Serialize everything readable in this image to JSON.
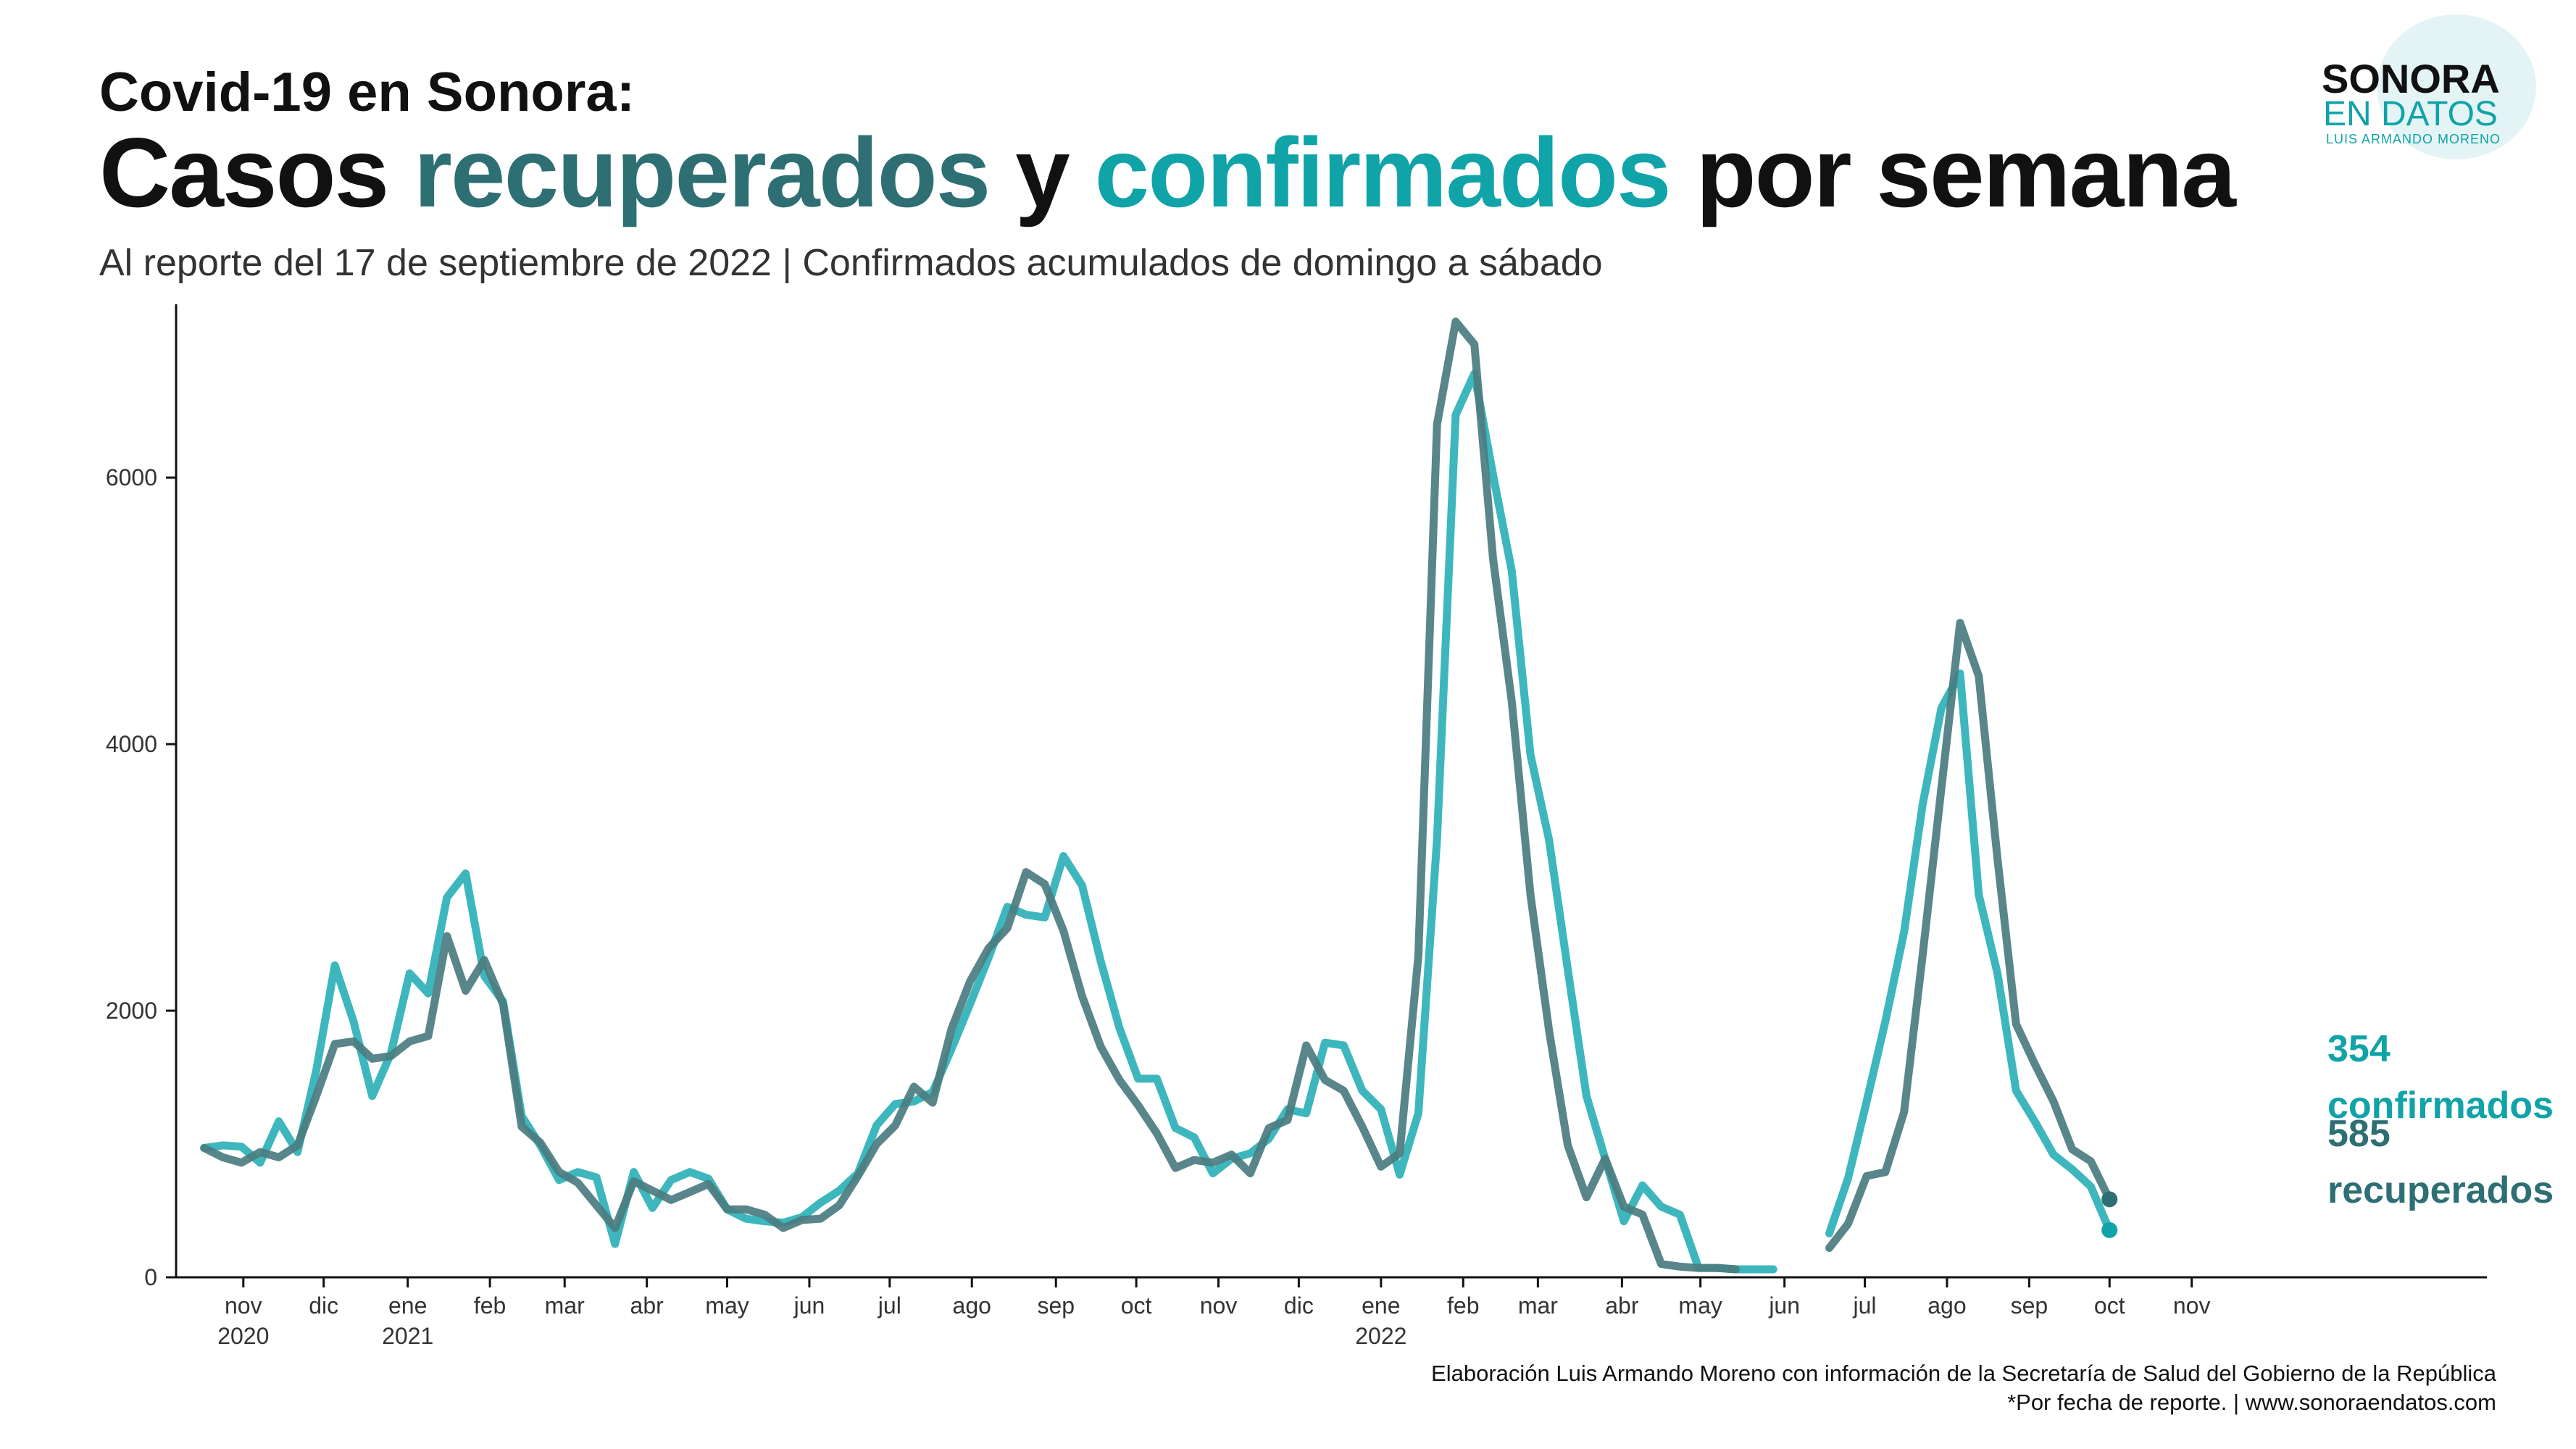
{
  "header": {
    "headline": "Covid-19  en Sonora:",
    "title_part1": "Casos ",
    "title_part2": "recuperados",
    "title_part3": " y ",
    "title_part4": "confirmados",
    "title_part5": " por semana",
    "subtitle": "Al reporte del 17 de septiembre de 2022 | Confirmados acumulados de domingo a sábado"
  },
  "logo": {
    "line1": "SONORA",
    "line2": "EN DATOS",
    "line3": "LUIS ARMANDO MORENO"
  },
  "credits": {
    "line1": "Elaboración Luis Armando Moreno con información de la Secretaría de Salud del Gobierno de la República",
    "line2": "*Por fecha de reporte. | www.sonoraendatos.com"
  },
  "colors": {
    "confirmados": "#2cb1b7",
    "recuperados": "#4a7c80",
    "confirmados_label": "#10a3a8",
    "recuperados_label": "#2e6f74",
    "axis": "#111111"
  },
  "chart_data": {
    "type": "line",
    "title": "Casos recuperados y confirmados por semana",
    "xlabel": "",
    "ylabel": "",
    "ylim": [
      0,
      7300
    ],
    "xlim": [
      -1.5,
      122.2
    ],
    "yticks": [
      0,
      2000,
      4000,
      6000
    ],
    "ytick_labels": [
      "0",
      "2000",
      "4000",
      "6000"
    ],
    "grid": false,
    "x_ticks": [
      {
        "x": 2.1,
        "label": "nov",
        "year": "2020"
      },
      {
        "x": 6.4,
        "label": "dic",
        "year": ""
      },
      {
        "x": 10.9,
        "label": "ene",
        "year": "2021"
      },
      {
        "x": 15.3,
        "label": "feb",
        "year": ""
      },
      {
        "x": 19.3,
        "label": "mar",
        "year": ""
      },
      {
        "x": 23.7,
        "label": "abr",
        "year": ""
      },
      {
        "x": 28.0,
        "label": "may",
        "year": ""
      },
      {
        "x": 32.4,
        "label": "jun",
        "year": ""
      },
      {
        "x": 36.7,
        "label": "jul",
        "year": ""
      },
      {
        "x": 41.1,
        "label": "ago",
        "year": ""
      },
      {
        "x": 45.6,
        "label": "sep",
        "year": ""
      },
      {
        "x": 49.9,
        "label": "oct",
        "year": ""
      },
      {
        "x": 54.3,
        "label": "nov",
        "year": ""
      },
      {
        "x": 58.6,
        "label": "dic",
        "year": ""
      },
      {
        "x": 63.0,
        "label": "ene",
        "year": "2022"
      },
      {
        "x": 67.4,
        "label": "feb",
        "year": ""
      },
      {
        "x": 71.4,
        "label": "mar",
        "year": ""
      },
      {
        "x": 75.9,
        "label": "abr",
        "year": ""
      },
      {
        "x": 80.1,
        "label": "may",
        "year": ""
      },
      {
        "x": 84.6,
        "label": "jun",
        "year": ""
      },
      {
        "x": 88.9,
        "label": "jul",
        "year": ""
      },
      {
        "x": 93.3,
        "label": "ago",
        "year": ""
      },
      {
        "x": 97.7,
        "label": "sep",
        "year": ""
      },
      {
        "x": 102.0,
        "label": "oct",
        "year": ""
      },
      {
        "x": 106.4,
        "label": "nov",
        "year": ""
      }
    ],
    "series": [
      {
        "name": "confirmados",
        "color": "#2cb1b7",
        "values": [
          970,
          990,
          980,
          860,
          1170,
          940,
          1550,
          2340,
          1920,
          1360,
          1680,
          2280,
          2130,
          2850,
          3030,
          2260,
          2070,
          1210,
          990,
          730,
          790,
          750,
          250,
          790,
          520,
          730,
          790,
          740,
          510,
          440,
          420,
          410,
          450,
          560,
          650,
          780,
          1140,
          1300,
          1320,
          1390,
          1710,
          2050,
          2400,
          2780,
          2720,
          2700,
          3160,
          2940,
          2370,
          1870,
          1490,
          1490,
          1120,
          1050,
          780,
          890,
          930,
          1040,
          1260,
          1230,
          1760,
          1740,
          1400,
          1260,
          770,
          1230,
          3290,
          6470,
          6780,
          6020,
          5300,
          3920,
          3280,
          2310,
          1360,
          890,
          420,
          690,
          530,
          470,
          70,
          70,
          60,
          60,
          60,
          null,
          null,
          330,
          740,
          1320,
          1920,
          2590,
          3550,
          4270,
          4530,
          2870,
          2280,
          1400,
          1170,
          920,
          810,
          680,
          354
        ],
        "end_label": "354",
        "end_label_2": "confirmados"
      },
      {
        "name": "recuperados",
        "color": "#4a7c80",
        "values": [
          970,
          900,
          860,
          940,
          900,
          990,
          1360,
          1750,
          1770,
          1640,
          1660,
          1770,
          1810,
          2560,
          2150,
          2380,
          2050,
          1130,
          1010,
          790,
          710,
          540,
          370,
          720,
          650,
          580,
          640,
          700,
          510,
          510,
          470,
          370,
          430,
          440,
          540,
          760,
          1000,
          1140,
          1430,
          1310,
          1860,
          2220,
          2470,
          2620,
          3040,
          2950,
          2600,
          2110,
          1730,
          1480,
          1290,
          1080,
          820,
          880,
          860,
          920,
          780,
          1120,
          1180,
          1740,
          1480,
          1400,
          1130,
          830,
          930,
          2410,
          6400,
          7170,
          7000,
          5390,
          4320,
          2870,
          1850,
          990,
          600,
          890,
          530,
          470,
          100,
          80,
          70,
          70,
          60,
          null,
          null,
          null,
          null,
          220,
          400,
          760,
          790,
          1240,
          2420,
          3670,
          4910,
          4510,
          3140,
          1900,
          1600,
          1320,
          960,
          870,
          585
        ],
        "end_label": "585",
        "end_label_2": "recuperados"
      }
    ]
  }
}
